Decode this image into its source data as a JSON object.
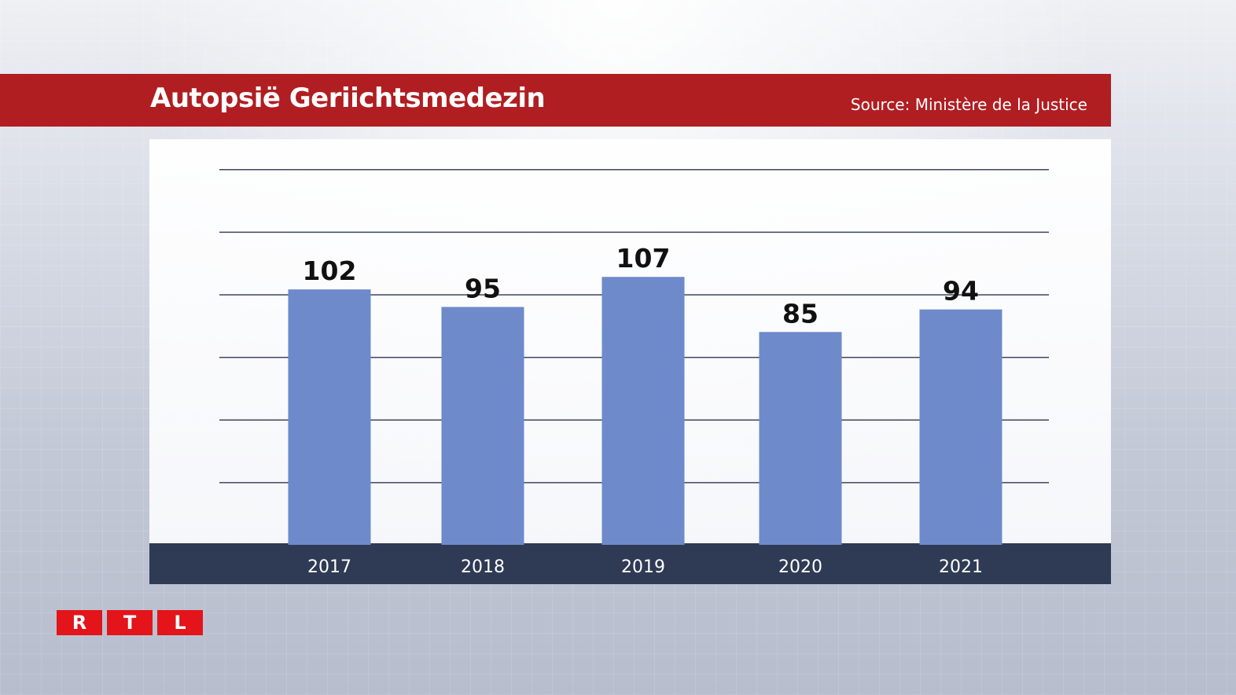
{
  "header": {
    "title": "Autopsië Geriichtsmedezin",
    "source": "Source: Ministère de la Justice"
  },
  "logo": {
    "letters": [
      "R",
      "T",
      "L"
    ],
    "color": "#e3141a"
  },
  "colors": {
    "title_bar": "#b01e22",
    "bar": "#6e8aca",
    "axis_band": "#2f3a55",
    "gridline": "#3d4660"
  },
  "chart_data": {
    "type": "bar",
    "title": "Autopsië Geriichtsmedezin",
    "categories": [
      "2017",
      "2018",
      "2019",
      "2020",
      "2021"
    ],
    "values": [
      102,
      95,
      107,
      85,
      94
    ],
    "ylim": [
      0,
      150
    ],
    "grid": true,
    "data_labels": true
  }
}
